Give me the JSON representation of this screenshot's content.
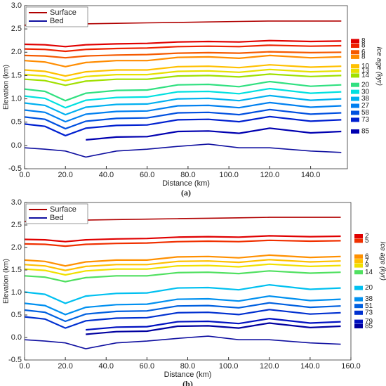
{
  "chart_data": [
    {
      "type": "line",
      "panel_label": "(a)",
      "x_label": "Distance (km)",
      "y_label": "Elevation (km)",
      "colorbar_label": "Ice age (kyr)",
      "colorbar_label_color": "#f0a030",
      "xlim": [
        0,
        158
      ],
      "ylim": [
        -0.5,
        3.0
      ],
      "xticks": [
        {
          "value": 0,
          "label": "0.0"
        },
        {
          "value": 20,
          "label": "20.0"
        },
        {
          "value": 40,
          "label": "40.0"
        },
        {
          "value": 60,
          "label": "60.0"
        },
        {
          "value": 80,
          "label": "80.0"
        },
        {
          "value": 100,
          "label": "100.0"
        },
        {
          "value": 120,
          "label": "120.0"
        },
        {
          "value": 140,
          "label": "140.0"
        }
      ],
      "yticks": [
        -0.5,
        {
          "value": 0,
          "label": "0.0"
        },
        0.5,
        {
          "value": 1,
          "label": "1.0"
        },
        1.5,
        {
          "value": 2,
          "label": "2.0"
        },
        2.5,
        {
          "value": 3,
          "label": "3.0"
        }
      ],
      "x": [
        0,
        10,
        20,
        30,
        45,
        60,
        75,
        90,
        105,
        120,
        140,
        155
      ],
      "series": [
        {
          "name": "Surface",
          "color": "#b00000",
          "values": [
            2.58,
            2.59,
            2.6,
            2.61,
            2.62,
            2.63,
            2.64,
            2.65,
            2.66,
            2.67,
            2.67,
            2.67
          ]
        },
        {
          "name": "Bed",
          "color": "#1010a0",
          "values": [
            -0.05,
            -0.08,
            -0.12,
            -0.25,
            -0.12,
            -0.08,
            -0.02,
            0.03,
            -0.05,
            -0.05,
            -0.12,
            -0.15
          ]
        }
      ],
      "layers": [
        {
          "label": "8",
          "color": "#e00000",
          "values": [
            2.17,
            2.16,
            2.12,
            2.16,
            2.18,
            2.19,
            2.22,
            2.23,
            2.22,
            2.25,
            2.23,
            2.24
          ]
        },
        {
          "label": "8",
          "color": "#ee2200",
          "values": [
            2.07,
            2.06,
            2.02,
            2.06,
            2.08,
            2.09,
            2.12,
            2.13,
            2.12,
            2.15,
            2.13,
            2.14
          ]
        },
        {
          "label": "6",
          "color": "#f55a00",
          "values": [
            1.93,
            1.92,
            1.88,
            1.92,
            1.94,
            1.95,
            1.98,
            1.99,
            1.98,
            2.01,
            1.99,
            2.0
          ]
        },
        {
          "label": "8",
          "color": "#ff8c00",
          "values": [
            1.82,
            1.79,
            1.69,
            1.78,
            1.82,
            1.82,
            1.89,
            1.9,
            1.87,
            1.93,
            1.88,
            1.9
          ]
        },
        {
          "label": "10",
          "color": "#ffc000",
          "values": [
            1.62,
            1.59,
            1.49,
            1.58,
            1.62,
            1.62,
            1.69,
            1.7,
            1.67,
            1.73,
            1.68,
            1.7
          ]
        },
        {
          "label": "13",
          "color": "#e8e000",
          "values": [
            1.52,
            1.49,
            1.39,
            1.48,
            1.52,
            1.52,
            1.59,
            1.6,
            1.57,
            1.63,
            1.58,
            1.6
          ]
        },
        {
          "label": "14",
          "color": "#a0e000",
          "values": [
            1.42,
            1.39,
            1.29,
            1.38,
            1.42,
            1.42,
            1.49,
            1.5,
            1.47,
            1.53,
            1.48,
            1.5
          ]
        },
        {
          "label": "20",
          "color": "#30e080",
          "values": [
            1.21,
            1.16,
            0.96,
            1.12,
            1.18,
            1.19,
            1.3,
            1.31,
            1.26,
            1.37,
            1.27,
            1.3
          ]
        },
        {
          "label": "30",
          "color": "#00e0e0",
          "values": [
            1.06,
            1.01,
            0.81,
            0.97,
            1.03,
            1.04,
            1.15,
            1.16,
            1.11,
            1.22,
            1.12,
            1.15
          ]
        },
        {
          "label": "38",
          "color": "#00b0f0",
          "values": [
            0.91,
            0.86,
            0.66,
            0.82,
            0.88,
            0.89,
            1.0,
            1.01,
            0.96,
            1.07,
            0.97,
            1.0
          ]
        },
        {
          "label": "27",
          "color": "#0080f0",
          "values": [
            0.76,
            0.71,
            0.51,
            0.67,
            0.73,
            0.74,
            0.85,
            0.86,
            0.81,
            0.92,
            0.82,
            0.85
          ]
        },
        {
          "label": "58",
          "color": "#0050e0",
          "values": [
            0.61,
            0.56,
            0.36,
            0.52,
            0.58,
            0.59,
            0.7,
            0.71,
            0.66,
            0.77,
            0.67,
            0.7
          ]
        },
        {
          "label": "73",
          "color": "#0020d0",
          "values": [
            0.46,
            0.41,
            0.21,
            0.37,
            0.43,
            0.44,
            0.55,
            0.56,
            0.51,
            0.62,
            0.52,
            0.55
          ]
        },
        {
          "label": "85",
          "color": "#0000b0",
          "values": [
            null,
            null,
            null,
            0.12,
            0.18,
            0.19,
            0.3,
            0.31,
            0.26,
            0.37,
            0.27,
            0.3
          ]
        }
      ]
    },
    {
      "type": "line",
      "panel_label": "(b)",
      "x_label": "Distance (km)",
      "y_label": "Elevation (km)",
      "colorbar_label": "Ice age (kyr)",
      "colorbar_label_color": "#50b020",
      "xlim": [
        0,
        160
      ],
      "ylim": [
        -0.5,
        3.0
      ],
      "xticks": [
        {
          "value": 0,
          "label": "0.0"
        },
        {
          "value": 20,
          "label": "20.0"
        },
        {
          "value": 40,
          "label": "40.0"
        },
        {
          "value": 60,
          "label": "60.0"
        },
        {
          "value": 80,
          "label": "80.0"
        },
        {
          "value": 100,
          "label": "100.0"
        },
        {
          "value": 120,
          "label": "120.0"
        },
        {
          "value": 140,
          "label": "140.0"
        },
        {
          "value": 160,
          "label": "160.0"
        }
      ],
      "yticks": [
        -0.5,
        {
          "value": 0,
          "label": "0.0"
        },
        0.5,
        {
          "value": 1,
          "label": "1.0"
        },
        1.5,
        {
          "value": 2,
          "label": "2.0"
        },
        2.5,
        {
          "value": 3,
          "label": "3.0"
        }
      ],
      "x": [
        0,
        10,
        20,
        30,
        45,
        60,
        75,
        90,
        105,
        120,
        140,
        155
      ],
      "series": [
        {
          "name": "Surface",
          "color": "#b00000",
          "values": [
            2.58,
            2.59,
            2.6,
            2.61,
            2.62,
            2.63,
            2.64,
            2.65,
            2.66,
            2.67,
            2.67,
            2.67
          ]
        },
        {
          "name": "Bed",
          "color": "#1010a0",
          "values": [
            -0.05,
            -0.08,
            -0.12,
            -0.25,
            -0.12,
            -0.08,
            -0.02,
            0.03,
            -0.05,
            -0.05,
            -0.12,
            -0.15
          ]
        }
      ],
      "layers": [
        {
          "label": "2",
          "color": "#e00000",
          "values": [
            2.18,
            2.17,
            2.13,
            2.17,
            2.19,
            2.2,
            2.23,
            2.24,
            2.23,
            2.26,
            2.24,
            2.25
          ]
        },
        {
          "label": "5",
          "color": "#f03000",
          "values": [
            2.08,
            2.07,
            2.03,
            2.07,
            2.09,
            2.1,
            2.13,
            2.14,
            2.13,
            2.16,
            2.14,
            2.15
          ]
        },
        {
          "label": "6",
          "color": "#ff9000",
          "values": [
            1.72,
            1.69,
            1.59,
            1.68,
            1.72,
            1.72,
            1.79,
            1.8,
            1.77,
            1.83,
            1.78,
            1.8
          ]
        },
        {
          "label": "7",
          "color": "#ffc000",
          "values": [
            1.62,
            1.59,
            1.49,
            1.58,
            1.62,
            1.62,
            1.69,
            1.7,
            1.67,
            1.73,
            1.68,
            1.7
          ]
        },
        {
          "label": "9",
          "color": "#f0e000",
          "values": [
            1.52,
            1.49,
            1.39,
            1.48,
            1.52,
            1.52,
            1.59,
            1.6,
            1.57,
            1.63,
            1.58,
            1.6
          ]
        },
        {
          "label": "14",
          "color": "#50e060",
          "values": [
            1.37,
            1.34,
            1.24,
            1.33,
            1.37,
            1.37,
            1.44,
            1.45,
            1.42,
            1.48,
            1.43,
            1.45
          ]
        },
        {
          "label": "20",
          "color": "#00c0f0",
          "values": [
            1.01,
            0.96,
            0.76,
            0.92,
            0.98,
            0.99,
            1.1,
            1.11,
            1.06,
            1.17,
            1.07,
            1.1
          ]
        },
        {
          "label": "38",
          "color": "#0090f0",
          "values": [
            0.76,
            0.71,
            0.51,
            0.67,
            0.73,
            0.74,
            0.85,
            0.86,
            0.81,
            0.92,
            0.82,
            0.85
          ]
        },
        {
          "label": "51",
          "color": "#0060e0",
          "values": [
            0.61,
            0.56,
            0.36,
            0.52,
            0.58,
            0.59,
            0.7,
            0.71,
            0.66,
            0.77,
            0.67,
            0.7
          ]
        },
        {
          "label": "73",
          "color": "#0030d0",
          "values": [
            0.46,
            0.41,
            0.21,
            0.37,
            0.43,
            0.44,
            0.55,
            0.56,
            0.51,
            0.62,
            0.52,
            0.55
          ]
        },
        {
          "label": "79",
          "color": "#0010c0",
          "values": [
            null,
            null,
            null,
            0.17,
            0.23,
            0.24,
            0.35,
            0.36,
            0.31,
            0.42,
            0.32,
            0.35
          ]
        },
        {
          "label": "85",
          "color": "#0000a0",
          "values": [
            null,
            null,
            null,
            0.07,
            0.13,
            0.14,
            0.25,
            0.26,
            0.21,
            0.32,
            0.22,
            0.25
          ]
        }
      ]
    }
  ]
}
